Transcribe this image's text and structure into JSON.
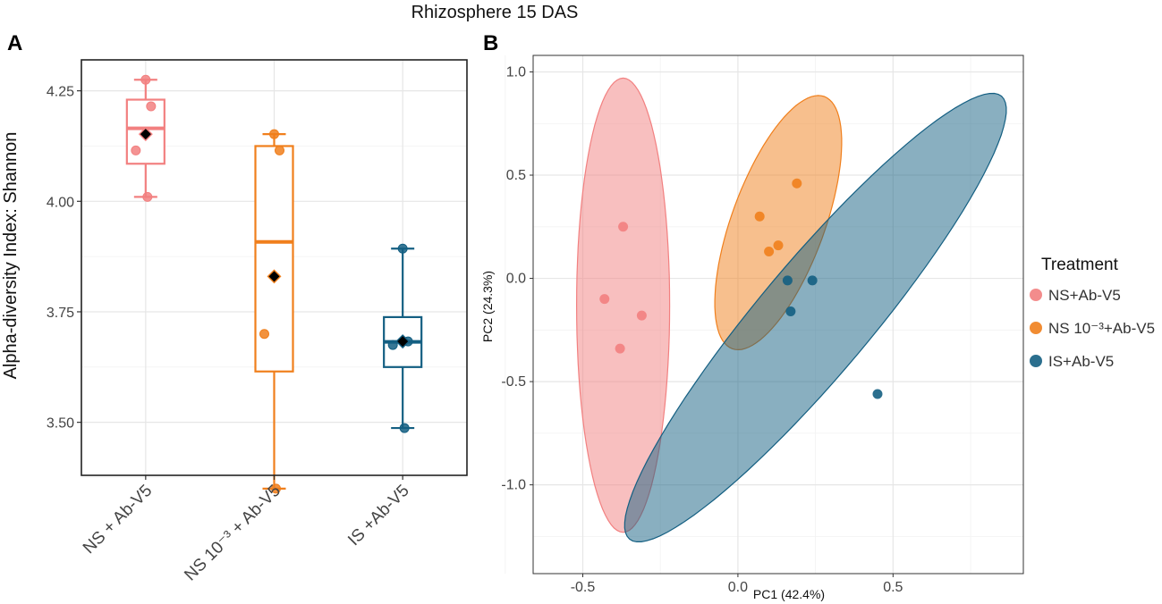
{
  "figure": {
    "title": "Rhizosphere 15 DAS",
    "colors": {
      "ns": "#f28080",
      "ns_ab": "#f07f1c",
      "is": "#145f82"
    }
  },
  "chart_data": [
    {
      "panel": "A",
      "type": "box",
      "ylabel": "Alpha-diversity Index: Shannon",
      "ylim": [
        3.38,
        4.32
      ],
      "yticks": [
        "3.50",
        "3.75",
        "4.00",
        "4.25"
      ],
      "categories": [
        "NS + Ab-V5",
        "NS 10⁻³ + Ab-V5",
        "IS +Ab-V5"
      ],
      "boxes": [
        {
          "name": "NS + Ab-V5",
          "whisker_low": 4.01,
          "q1": 4.085,
          "median": 4.165,
          "q3": 4.23,
          "whisker_high": 4.275,
          "mean": 4.152,
          "points": [
            4.275,
            4.215,
            4.115,
            4.01
          ],
          "color": "#f28080"
        },
        {
          "name": "NS 10⁻³ + Ab-V5",
          "whisker_low": 3.35,
          "q1": 3.615,
          "median": 3.908,
          "q3": 4.125,
          "whisker_high": 4.152,
          "mean": 3.83,
          "points": [
            4.152,
            4.115,
            3.7,
            3.35
          ],
          "color": "#f07f1c"
        },
        {
          "name": "IS +Ab-V5",
          "whisker_low": 3.487,
          "q1": 3.625,
          "median": 3.682,
          "q3": 3.738,
          "whisker_high": 3.893,
          "mean": 3.683,
          "points": [
            3.893,
            3.683,
            3.675,
            3.487
          ],
          "color": "#145f82"
        }
      ]
    },
    {
      "panel": "B",
      "type": "scatter",
      "xlabel": "PC1 (42.4%)",
      "ylabel": "PC2 (24.3%)",
      "xlim": [
        -0.66,
        0.92
      ],
      "ylim": [
        -1.43,
        1.08
      ],
      "xticks": [
        "-0.5",
        "0.0",
        "0.5"
      ],
      "yticks": [
        "-1.0",
        "-0.5",
        "0.0",
        "0.5",
        "1.0"
      ],
      "legend_title": "Treatment",
      "series": [
        {
          "name": "NS+Ab-V5",
          "color": "#f28080",
          "points": [
            [
              -0.37,
              0.25
            ],
            [
              -0.43,
              -0.1
            ],
            [
              -0.31,
              -0.18
            ],
            [
              -0.38,
              -0.34
            ]
          ],
          "ellipse": {
            "cx": -0.37,
            "cy": -0.13,
            "rx": 0.15,
            "ry": 1.1,
            "angle": 0
          }
        },
        {
          "name": "NS 10⁻³+Ab-V5",
          "color": "#f07f1c",
          "points": [
            [
              0.19,
              0.46
            ],
            [
              0.07,
              0.3
            ],
            [
              0.13,
              0.16
            ],
            [
              0.1,
              0.13
            ]
          ],
          "ellipse": {
            "cx": 0.13,
            "cy": 0.27,
            "rx": 0.15,
            "ry": 0.65,
            "angle": 20
          }
        },
        {
          "name": "IS+Ab-V5",
          "color": "#145f82",
          "points": [
            [
              0.16,
              -0.01
            ],
            [
              0.24,
              -0.01
            ],
            [
              0.17,
              -0.16
            ],
            [
              0.45,
              -0.56
            ]
          ],
          "ellipse": {
            "cx": 0.25,
            "cy": -0.19,
            "rx": 0.18,
            "ry": 1.4,
            "angle": 40
          }
        }
      ]
    }
  ]
}
